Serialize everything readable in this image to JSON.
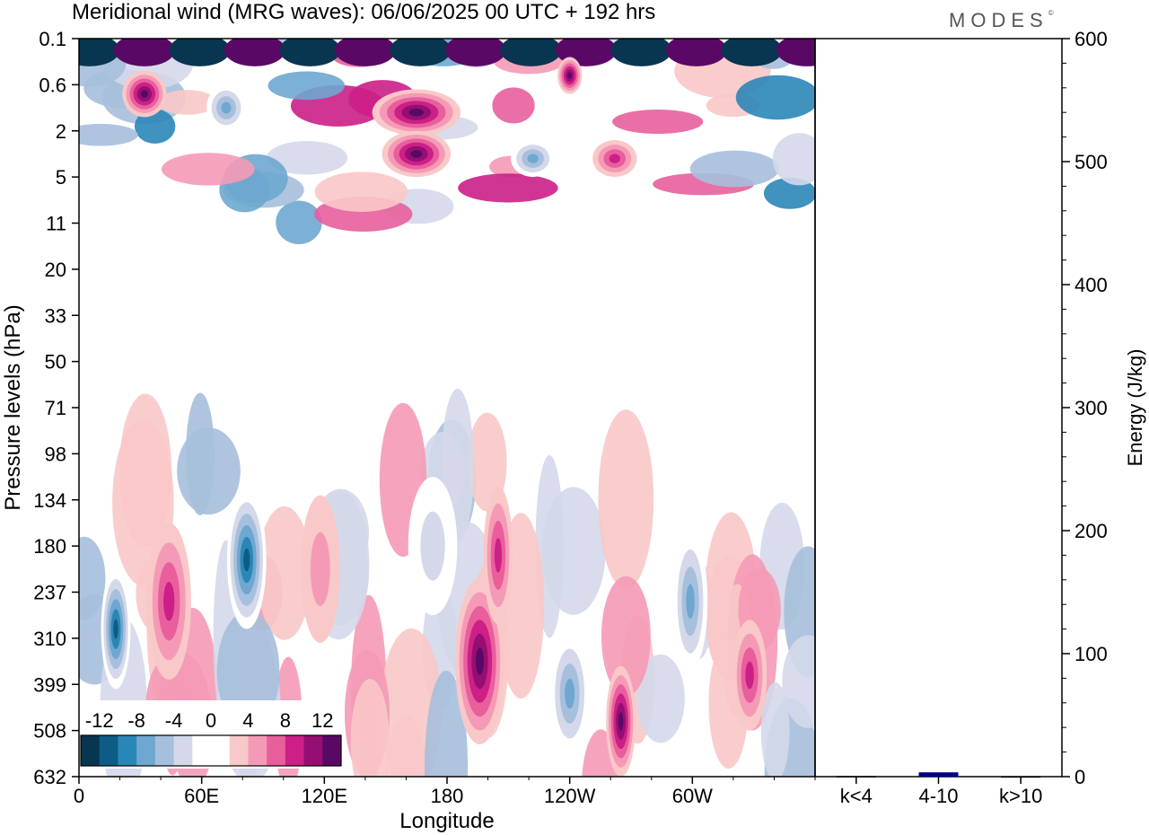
{
  "title": "Meridional wind (MRG waves):  06/06/2025  00 UTC  + 192 hrs",
  "brand": "MODES",
  "brand_mark": "©",
  "chart_data": [
    {
      "type": "heatmap",
      "xlabel": "Longitude",
      "ylabel": "Pressure levels (hPa)",
      "x_ticks": [
        "0",
        "60E",
        "120E",
        "180",
        "120W",
        "60W"
      ],
      "y_ticks": [
        "0.1",
        "0.6",
        "2",
        "5",
        "11",
        "20",
        "33",
        "50",
        "71",
        "98",
        "134",
        "180",
        "237",
        "310",
        "399",
        "508",
        "632"
      ],
      "colorbar": {
        "labels": [
          "-12",
          "-8",
          "-4",
          "0",
          "4",
          "8",
          "12"
        ],
        "colors": [
          "#08354f",
          "#0d5c85",
          "#2b86b8",
          "#6ea7cf",
          "#a6bfdc",
          "#d4d8ea",
          "#ffffff",
          "#ffffff",
          "#f9c8c8",
          "#f59ab6",
          "#e85f9c",
          "#cc1f87",
          "#950f72",
          "#5a0866"
        ]
      },
      "features": [
        {
          "lon": 18,
          "level_index": 12.8,
          "value": -12,
          "w": 6,
          "h": 2.6
        },
        {
          "lon": 44,
          "level_index": 12.2,
          "value": 8,
          "w": 9,
          "h": 3.4
        },
        {
          "lon": 82,
          "level_index": 11.3,
          "value": -12,
          "w": 8,
          "h": 3.0
        },
        {
          "lon": 118,
          "level_index": 11.5,
          "value": 4,
          "w": 8,
          "h": 3.2
        },
        {
          "lon": 173,
          "level_index": 11.0,
          "value": -4,
          "w": 10,
          "h": 3.0
        },
        {
          "lon": 196,
          "level_index": 13.5,
          "value": 12,
          "w": 10,
          "h": 3.6
        },
        {
          "lon": 205,
          "level_index": 11.2,
          "value": 8,
          "w": 6,
          "h": 3.0
        },
        {
          "lon": 240,
          "level_index": 14.2,
          "value": -8,
          "w": 8,
          "h": 2.6
        },
        {
          "lon": 265,
          "level_index": 14.8,
          "value": 12,
          "w": 6,
          "h": 2.4
        },
        {
          "lon": 299,
          "level_index": 12.2,
          "value": -8,
          "w": 7,
          "h": 3.0
        },
        {
          "lon": 328,
          "level_index": 13.8,
          "value": 8,
          "w": 7,
          "h": 2.4
        },
        {
          "lon": 32,
          "level_index": 1.2,
          "value": 12,
          "w": 9,
          "h": 1.0
        },
        {
          "lon": 72,
          "level_index": 1.5,
          "value": -8,
          "w": 8,
          "h": 1.0
        },
        {
          "lon": 165,
          "level_index": 1.6,
          "value": 12,
          "w": 18,
          "h": 1.0
        },
        {
          "lon": 165,
          "level_index": 2.5,
          "value": 12,
          "w": 14,
          "h": 1.0
        },
        {
          "lon": 222,
          "level_index": 2.6,
          "value": -8,
          "w": 9,
          "h": 0.8
        },
        {
          "lon": 262,
          "level_index": 2.6,
          "value": 8,
          "w": 9,
          "h": 0.8
        },
        {
          "lon": 240,
          "level_index": 0.8,
          "value": 12,
          "w": 5,
          "h": 0.8
        }
      ]
    },
    {
      "type": "bar",
      "ylabel": "Energy (J/kg)",
      "ylim": [
        0,
        600
      ],
      "y_ticks": [
        "0",
        "100",
        "200",
        "300",
        "400",
        "500",
        "600"
      ],
      "categories": [
        "k<4",
        "4-10",
        "k>10"
      ],
      "values": [
        0.5,
        3.5,
        0.3
      ],
      "bar_colors": [
        "#000000",
        "#00008b",
        "#000000"
      ]
    }
  ]
}
